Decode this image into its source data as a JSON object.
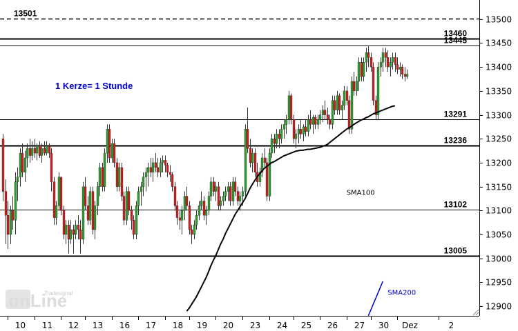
{
  "chart_data": {
    "type": "candlestick",
    "annotation": "1 Kerze= 1 Stunde",
    "watermark": {
      "top": "Tradesignal",
      "main": "onLine"
    },
    "ylim": [
      12880,
      13540
    ],
    "y_ticks": [
      12900,
      12950,
      13000,
      13050,
      13100,
      13150,
      13200,
      13250,
      13300,
      13350,
      13400,
      13450,
      13500
    ],
    "x_ticks": [
      {
        "label": "10",
        "i": 2
      },
      {
        "label": "11",
        "i": 13
      },
      {
        "label": "12",
        "i": 24
      },
      {
        "label": "13",
        "i": 34
      },
      {
        "label": "16",
        "i": 45
      },
      {
        "label": "17",
        "i": 56
      },
      {
        "label": "18",
        "i": 67
      },
      {
        "label": "19",
        "i": 77
      },
      {
        "label": "20",
        "i": 88
      },
      {
        "label": "23",
        "i": 99
      },
      {
        "label": "24",
        "i": 110
      },
      {
        "label": "25",
        "i": 120
      },
      {
        "label": "26",
        "i": 131
      },
      {
        "label": "27",
        "i": 142
      },
      {
        "label": "30",
        "i": 152
      },
      {
        "label": "Dez",
        "i": 163
      },
      {
        "label": "2",
        "i": 180
      }
    ],
    "levels": [
      {
        "value": 13501,
        "label": "13501",
        "style": "dashed",
        "label_side": "left"
      },
      {
        "value": 13460,
        "label": "13460",
        "style": "thick",
        "label_side": "right"
      },
      {
        "value": 13445,
        "label": "13445",
        "style": "thin",
        "label_side": "right"
      },
      {
        "value": 13291,
        "label": "13291",
        "style": "thin",
        "label_side": "right"
      },
      {
        "value": 13236,
        "label": "13236",
        "style": "thick",
        "label_side": "right"
      },
      {
        "value": 13102,
        "label": "13102",
        "style": "thin",
        "label_side": "right"
      },
      {
        "value": 13005,
        "label": "13005",
        "style": "thick",
        "label_side": "right"
      }
    ],
    "candles": [
      [
        13250,
        13260,
        13120,
        13140
      ],
      [
        13140,
        13165,
        13030,
        13090
      ],
      [
        13090,
        13120,
        13020,
        13050
      ],
      [
        13050,
        13110,
        13030,
        13100
      ],
      [
        13100,
        13130,
        13060,
        13080
      ],
      [
        13080,
        13180,
        13050,
        13160
      ],
      [
        13160,
        13190,
        13120,
        13170
      ],
      [
        13170,
        13230,
        13150,
        13220
      ],
      [
        13220,
        13240,
        13170,
        13180
      ],
      [
        13180,
        13225,
        13160,
        13210
      ],
      [
        13210,
        13240,
        13190,
        13230
      ],
      [
        13230,
        13250,
        13200,
        13215
      ],
      [
        13215,
        13245,
        13205,
        13230
      ],
      [
        13230,
        13250,
        13210,
        13220
      ],
      [
        13220,
        13240,
        13205,
        13235
      ],
      [
        13235,
        13245,
        13210,
        13215
      ],
      [
        13215,
        13240,
        13200,
        13230
      ],
      [
        13230,
        13245,
        13215,
        13220
      ],
      [
        13220,
        13245,
        13215,
        13235
      ],
      [
        13235,
        13240,
        13210,
        13220
      ],
      [
        13220,
        13230,
        13140,
        13160
      ],
      [
        13160,
        13170,
        13070,
        13085
      ],
      [
        13085,
        13120,
        13070,
        13110
      ],
      [
        13110,
        13180,
        13100,
        13170
      ],
      [
        13170,
        13170,
        13090,
        13100
      ],
      [
        13100,
        13110,
        13040,
        13050
      ],
      [
        13050,
        13080,
        13030,
        13070
      ],
      [
        13070,
        13080,
        13010,
        13040
      ],
      [
        13040,
        13080,
        13030,
        13060
      ],
      [
        13060,
        13070,
        13010,
        13050
      ],
      [
        13050,
        13080,
        13040,
        13070
      ],
      [
        13070,
        13090,
        13040,
        13060
      ],
      [
        13060,
        13080,
        13010,
        13040
      ],
      [
        13040,
        13160,
        13030,
        13150
      ],
      [
        13150,
        13170,
        13100,
        13110
      ],
      [
        13110,
        13130,
        13070,
        13080
      ],
      [
        13080,
        13150,
        13070,
        13140
      ],
      [
        13140,
        13150,
        13050,
        13060
      ],
      [
        13060,
        13120,
        13040,
        13110
      ],
      [
        13110,
        13160,
        13090,
        13150
      ],
      [
        13150,
        13200,
        13130,
        13190
      ],
      [
        13190,
        13200,
        13140,
        13150
      ],
      [
        13150,
        13230,
        13140,
        13220
      ],
      [
        13220,
        13280,
        13200,
        13270
      ],
      [
        13270,
        13280,
        13200,
        13210
      ],
      [
        13210,
        13250,
        13200,
        13240
      ],
      [
        13240,
        13250,
        13190,
        13200
      ],
      [
        13200,
        13210,
        13140,
        13150
      ],
      [
        13150,
        13200,
        13140,
        13190
      ],
      [
        13190,
        13200,
        13120,
        13130
      ],
      [
        13130,
        13140,
        13070,
        13080
      ],
      [
        13080,
        13150,
        13070,
        13140
      ],
      [
        13140,
        13150,
        13090,
        13100
      ],
      [
        13100,
        13110,
        13060,
        13080
      ],
      [
        13080,
        13090,
        13040,
        13050
      ],
      [
        13050,
        13120,
        13040,
        13110
      ],
      [
        13110,
        13150,
        13090,
        13140
      ],
      [
        13140,
        13160,
        13110,
        13150
      ],
      [
        13150,
        13180,
        13130,
        13170
      ],
      [
        13170,
        13190,
        13140,
        13180
      ],
      [
        13180,
        13200,
        13150,
        13190
      ],
      [
        13190,
        13210,
        13170,
        13180
      ],
      [
        13180,
        13210,
        13160,
        13200
      ],
      [
        13200,
        13220,
        13180,
        13190
      ],
      [
        13190,
        13210,
        13170,
        13180
      ],
      [
        13180,
        13210,
        13170,
        13200
      ],
      [
        13200,
        13215,
        13180,
        13205
      ],
      [
        13205,
        13215,
        13180,
        13195
      ],
      [
        13195,
        13200,
        13170,
        13180
      ],
      [
        13180,
        13195,
        13160,
        13175
      ],
      [
        13175,
        13180,
        13140,
        13150
      ],
      [
        13150,
        13160,
        13100,
        13110
      ],
      [
        13110,
        13120,
        13070,
        13085
      ],
      [
        13085,
        13100,
        13060,
        13080
      ],
      [
        13080,
        13110,
        13050,
        13100
      ],
      [
        13100,
        13140,
        13080,
        13130
      ],
      [
        13130,
        13150,
        13100,
        13110
      ],
      [
        13110,
        13120,
        13050,
        13060
      ],
      [
        13060,
        13070,
        13030,
        13050
      ],
      [
        13050,
        13080,
        13040,
        13070
      ],
      [
        13070,
        13100,
        13060,
        13090
      ],
      [
        13090,
        13120,
        13080,
        13110
      ],
      [
        13110,
        13140,
        13100,
        13120
      ],
      [
        13120,
        13130,
        13080,
        13090
      ],
      [
        13090,
        13110,
        13070,
        13100
      ],
      [
        13100,
        13140,
        13090,
        13130
      ],
      [
        13130,
        13170,
        13120,
        13160
      ],
      [
        13160,
        13170,
        13130,
        13140
      ],
      [
        13140,
        13160,
        13120,
        13150
      ],
      [
        13150,
        13160,
        13100,
        13110
      ],
      [
        13110,
        13130,
        13100,
        13120
      ],
      [
        13120,
        13140,
        13110,
        13130
      ],
      [
        13130,
        13150,
        13120,
        13140
      ],
      [
        13140,
        13160,
        13120,
        13150
      ],
      [
        13150,
        13160,
        13110,
        13120
      ],
      [
        13120,
        13170,
        13110,
        13160
      ],
      [
        13160,
        13170,
        13130,
        13140
      ],
      [
        13140,
        13150,
        13110,
        13120
      ],
      [
        13120,
        13140,
        13100,
        13130
      ],
      [
        13130,
        13150,
        13110,
        13140
      ],
      [
        13140,
        13280,
        13130,
        13270
      ],
      [
        13270,
        13315,
        13220,
        13230
      ],
      [
        13230,
        13250,
        13190,
        13200
      ],
      [
        13200,
        13230,
        13180,
        13220
      ],
      [
        13220,
        13230,
        13170,
        13180
      ],
      [
        13180,
        13200,
        13150,
        13160
      ],
      [
        13160,
        13190,
        13150,
        13180
      ],
      [
        13180,
        13220,
        13170,
        13210
      ],
      [
        13210,
        13230,
        13190,
        13200
      ],
      [
        13200,
        13210,
        13120,
        13130
      ],
      [
        13130,
        13230,
        13120,
        13220
      ],
      [
        13220,
        13260,
        13210,
        13250
      ],
      [
        13250,
        13260,
        13220,
        13240
      ],
      [
        13240,
        13270,
        13230,
        13260
      ],
      [
        13260,
        13270,
        13230,
        13250
      ],
      [
        13250,
        13280,
        13240,
        13270
      ],
      [
        13270,
        13290,
        13250,
        13280
      ],
      [
        13280,
        13300,
        13260,
        13290
      ],
      [
        13290,
        13350,
        13280,
        13340
      ],
      [
        13340,
        13345,
        13280,
        13290
      ],
      [
        13290,
        13300,
        13240,
        13250
      ],
      [
        13250,
        13270,
        13230,
        13260
      ],
      [
        13260,
        13280,
        13240,
        13270
      ],
      [
        13270,
        13290,
        13250,
        13260
      ],
      [
        13260,
        13280,
        13245,
        13275
      ],
      [
        13275,
        13290,
        13255,
        13265
      ],
      [
        13265,
        13300,
        13255,
        13290
      ],
      [
        13290,
        13310,
        13270,
        13280
      ],
      [
        13280,
        13300,
        13260,
        13295
      ],
      [
        13295,
        13300,
        13270,
        13280
      ],
      [
        13280,
        13300,
        13270,
        13290
      ],
      [
        13290,
        13310,
        13280,
        13300
      ],
      [
        13300,
        13320,
        13285,
        13310
      ],
      [
        13310,
        13330,
        13290,
        13300
      ],
      [
        13300,
        13315,
        13280,
        13290
      ],
      [
        13290,
        13300,
        13270,
        13280
      ],
      [
        13280,
        13340,
        13270,
        13330
      ],
      [
        13330,
        13340,
        13300,
        13310
      ],
      [
        13310,
        13350,
        13300,
        13340
      ],
      [
        13340,
        13345,
        13300,
        13310
      ],
      [
        13310,
        13330,
        13290,
        13320
      ],
      [
        13320,
        13360,
        13310,
        13350
      ],
      [
        13350,
        13360,
        13320,
        13330
      ],
      [
        13330,
        13340,
        13260,
        13270
      ],
      [
        13270,
        13380,
        13260,
        13370
      ],
      [
        13370,
        13390,
        13340,
        13350
      ],
      [
        13350,
        13380,
        13340,
        13370
      ],
      [
        13370,
        13420,
        13350,
        13410
      ],
      [
        13410,
        13420,
        13370,
        13380
      ],
      [
        13380,
        13420,
        13370,
        13410
      ],
      [
        13410,
        13440,
        13390,
        13430
      ],
      [
        13430,
        13445,
        13400,
        13420
      ],
      [
        13420,
        13430,
        13390,
        13400
      ],
      [
        13400,
        13410,
        13320,
        13330
      ],
      [
        13330,
        13340,
        13290,
        13300
      ],
      [
        13300,
        13410,
        13290,
        13400
      ],
      [
        13400,
        13420,
        13380,
        13410
      ],
      [
        13410,
        13440,
        13390,
        13430
      ],
      [
        13430,
        13440,
        13400,
        13420
      ],
      [
        13420,
        13435,
        13390,
        13400
      ],
      [
        13400,
        13420,
        13380,
        13410
      ],
      [
        13410,
        13430,
        13395,
        13420
      ],
      [
        13420,
        13430,
        13390,
        13405
      ],
      [
        13405,
        13420,
        13385,
        13395
      ],
      [
        13395,
        13410,
        13380,
        13400
      ],
      [
        13400,
        13405,
        13375,
        13385
      ],
      [
        13385,
        13400,
        13370,
        13380
      ],
      [
        13380,
        13395,
        13375,
        13385
      ]
    ],
    "series": [
      {
        "name": "SMA100",
        "color": "#000000",
        "start": 76,
        "values": [
          12890,
          12896,
          12904,
          12912,
          12920,
          12930,
          12940,
          12950,
          12960,
          12972,
          12985,
          12996,
          13006,
          13018,
          13030,
          13040,
          13052,
          13062,
          13072,
          13082,
          13092,
          13100,
          13108,
          13116,
          13124,
          13134,
          13145,
          13154,
          13162,
          13170,
          13176,
          13182,
          13188,
          13192,
          13196,
          13200,
          13202,
          13205,
          13208,
          13211,
          13214,
          13216,
          13218,
          13220,
          13222,
          13224,
          13225,
          13226,
          13226,
          13227,
          13228,
          13228,
          13229,
          13230,
          13231,
          13232,
          13234,
          13236,
          13238,
          13242,
          13246,
          13250,
          13254,
          13258,
          13262,
          13266,
          13270,
          13273,
          13276,
          13280,
          13283,
          13286,
          13289,
          13291,
          13294,
          13296,
          13299,
          13302,
          13304,
          13306,
          13308,
          13310,
          13312,
          13314,
          13316,
          13318,
          13319
        ]
      },
      {
        "name": "SMA200",
        "color": "#0000cc",
        "start": 151,
        "values": [
          12880,
          12892,
          12904,
          12916,
          12928,
          12940,
          12952
        ]
      }
    ]
  }
}
